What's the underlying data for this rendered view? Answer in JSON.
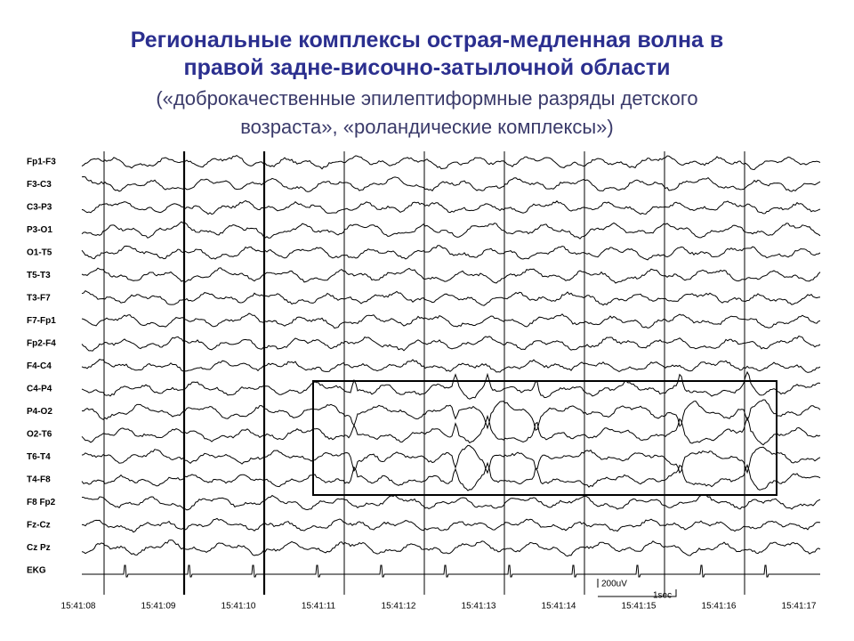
{
  "header": {
    "title_lines": [
      "Региональные комплексы острая-медленная волна в",
      "правой задне-височно-затылочной области"
    ],
    "subtitle_lines": [
      "(«доброкачественные эпилептиформные разряды детского",
      "возраста», «роландические комплексы»)"
    ]
  },
  "eeg": {
    "channels": [
      "Fp1-F3",
      "F3-C3",
      "C3-P3",
      "P3-O1",
      "O1-T5",
      "T5-T3",
      "T3-F7",
      "F7-Fp1",
      "Fp2-F4",
      "F4-C4",
      "C4-P4",
      "P4-O2",
      "O2-T6",
      "T6-T4",
      "T4-F8",
      "F8 Fp2",
      "Fz-Cz",
      "Cz Pz",
      "EKG"
    ],
    "times": [
      "15:41:08",
      "15:41:09",
      "15:41:10",
      "15:41:11",
      "15:41:12",
      "15:41:13",
      "15:41:14",
      "15:41:15",
      "15:41:16",
      "15:41:17"
    ],
    "calibration": {
      "amplitude": "200uV",
      "time": "1sec"
    }
  }
}
